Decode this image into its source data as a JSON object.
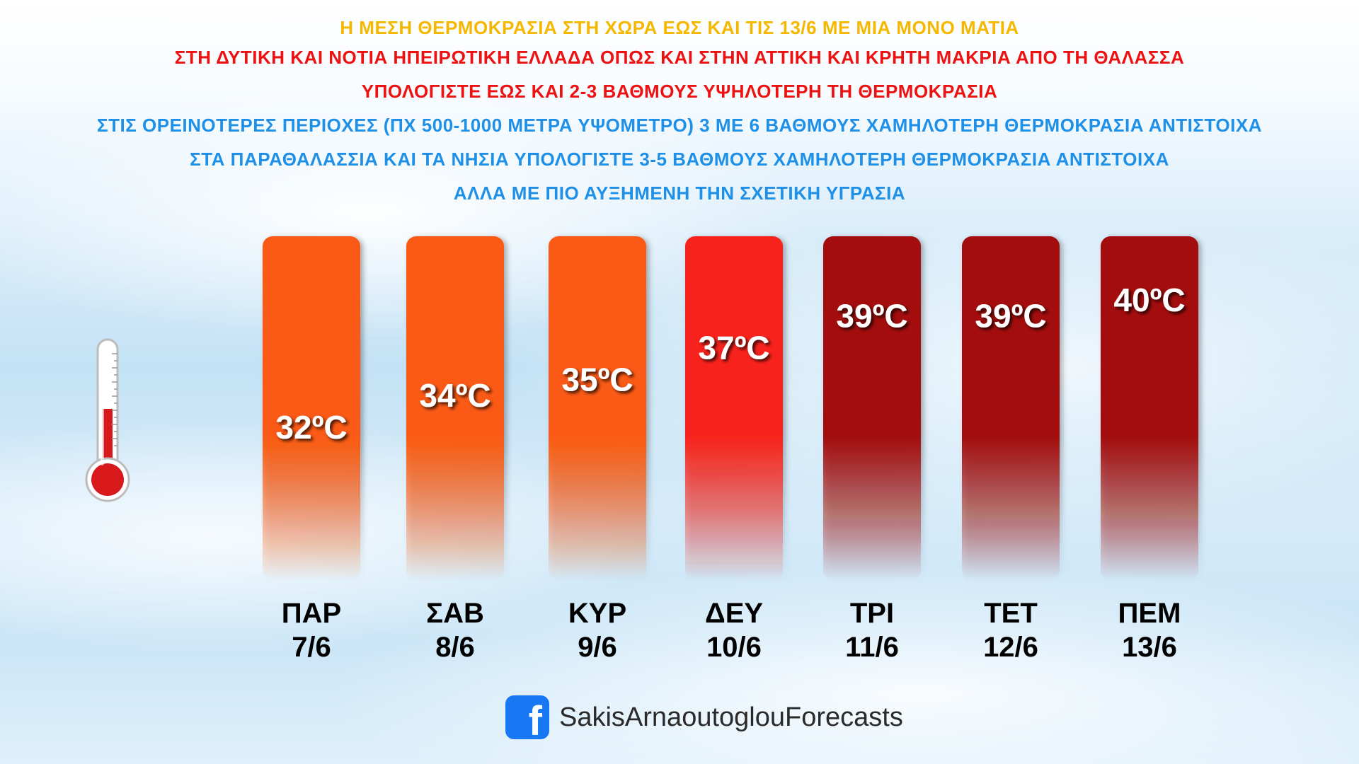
{
  "headlines": [
    {
      "text": "Η ΜΕΣΗ ΘΕΡΜΟΚΡΑΣΙΑ ΣΤΗ ΧΩΡΑ ΕΩΣ ΚΑΙ ΤΙΣ 13/6 ΜΕ ΜΙΑ ΜΟΝΟ ΜΑΤΙΑ",
      "color": "#f5b800"
    },
    {
      "text": "ΣΤΗ ΔΥΤΙΚΗ ΚΑΙ ΝΟΤΙΑ ΗΠΕΙΡΩΤΙΚΗ ΕΛΛΑΔΑ ΟΠΩΣ ΚΑΙ ΣΤΗΝ ΑΤΤΙΚΗ ΚΑΙ ΚΡΗΤΗ ΜΑΚΡΙΑ ΑΠΟ ΤΗ ΘΑΛΑΣΣΑ",
      "color": "#ee1111"
    },
    {
      "text": "ΥΠΟΛΟΓΙΣΤΕ ΕΩΣ ΚΑΙ 2-3 ΒΑΘΜΟΥΣ ΥΨΗΛΟΤΕΡΗ ΤΗ ΘΕΡΜΟΚΡΑΣΙΑ",
      "color": "#ee1111"
    },
    {
      "text": "ΣΤΙΣ ΟΡΕΙΝΟΤΕΡΕΣ ΠΕΡΙΟΧΕΣ (ΠΧ 500-1000 ΜΕΤΡΑ ΥΨΟΜΕΤΡΟ) 3 ΜΕ 6 ΒΑΘΜΟΥΣ ΧΑΜΗΛΟΤΕΡΗ ΘΕΡΜΟΚΡΑΣΙΑ ΑΝΤΙΣΤΟΙΧΑ",
      "color": "#1e90e8"
    },
    {
      "text": "ΣΤΑ ΠΑΡΑΘΑΛΑΣΣΙΑ ΚΑΙ ΤΑ ΝΗΣΙΑ ΥΠΟΛΟΓΙΣΤΕ 3-5 ΒΑΘΜΟΥΣ ΧΑΜΗΛΟΤΕΡΗ ΘΕΡΜΟΚΡΑΣΙΑ ΑΝΤΙΣΤΟΙΧΑ",
      "color": "#1e90e8"
    },
    {
      "text": "ΑΛΛΑ ΜΕ ΠΙΟ ΑΥΞΗΜΕΝΗ ΤΗΝ ΣΧΕΤΙΚΗ ΥΓΡΑΣΙΑ",
      "color": "#1e90e8"
    }
  ],
  "chart_data": {
    "type": "bar",
    "categories": [
      "ΠΑΡ",
      "ΣΑΒ",
      "ΚΥΡ",
      "ΔΕΥ",
      "ΤΡΙ",
      "ΤΕΤ",
      "ΠΕΜ"
    ],
    "dates": [
      "7/6",
      "8/6",
      "9/6",
      "10/6",
      "11/6",
      "12/6",
      "13/6"
    ],
    "values": [
      32,
      34,
      35,
      37,
      39,
      39,
      40
    ],
    "value_labels": [
      "32ºC",
      "34ºC",
      "35ºC",
      "37ºC",
      "39ºC",
      "39ºC",
      "40ºC"
    ],
    "bar_colors": [
      "#fb5a12",
      "#fb5a12",
      "#fb5a12",
      "#f8241a",
      "#a30f0b",
      "#a30f0b",
      "#a30f0b"
    ],
    "unit": "ºC",
    "legend": "none",
    "grid": false
  },
  "footer": {
    "icon": "facebook-icon",
    "text": "SakisArnaoutoglouForecasts"
  }
}
